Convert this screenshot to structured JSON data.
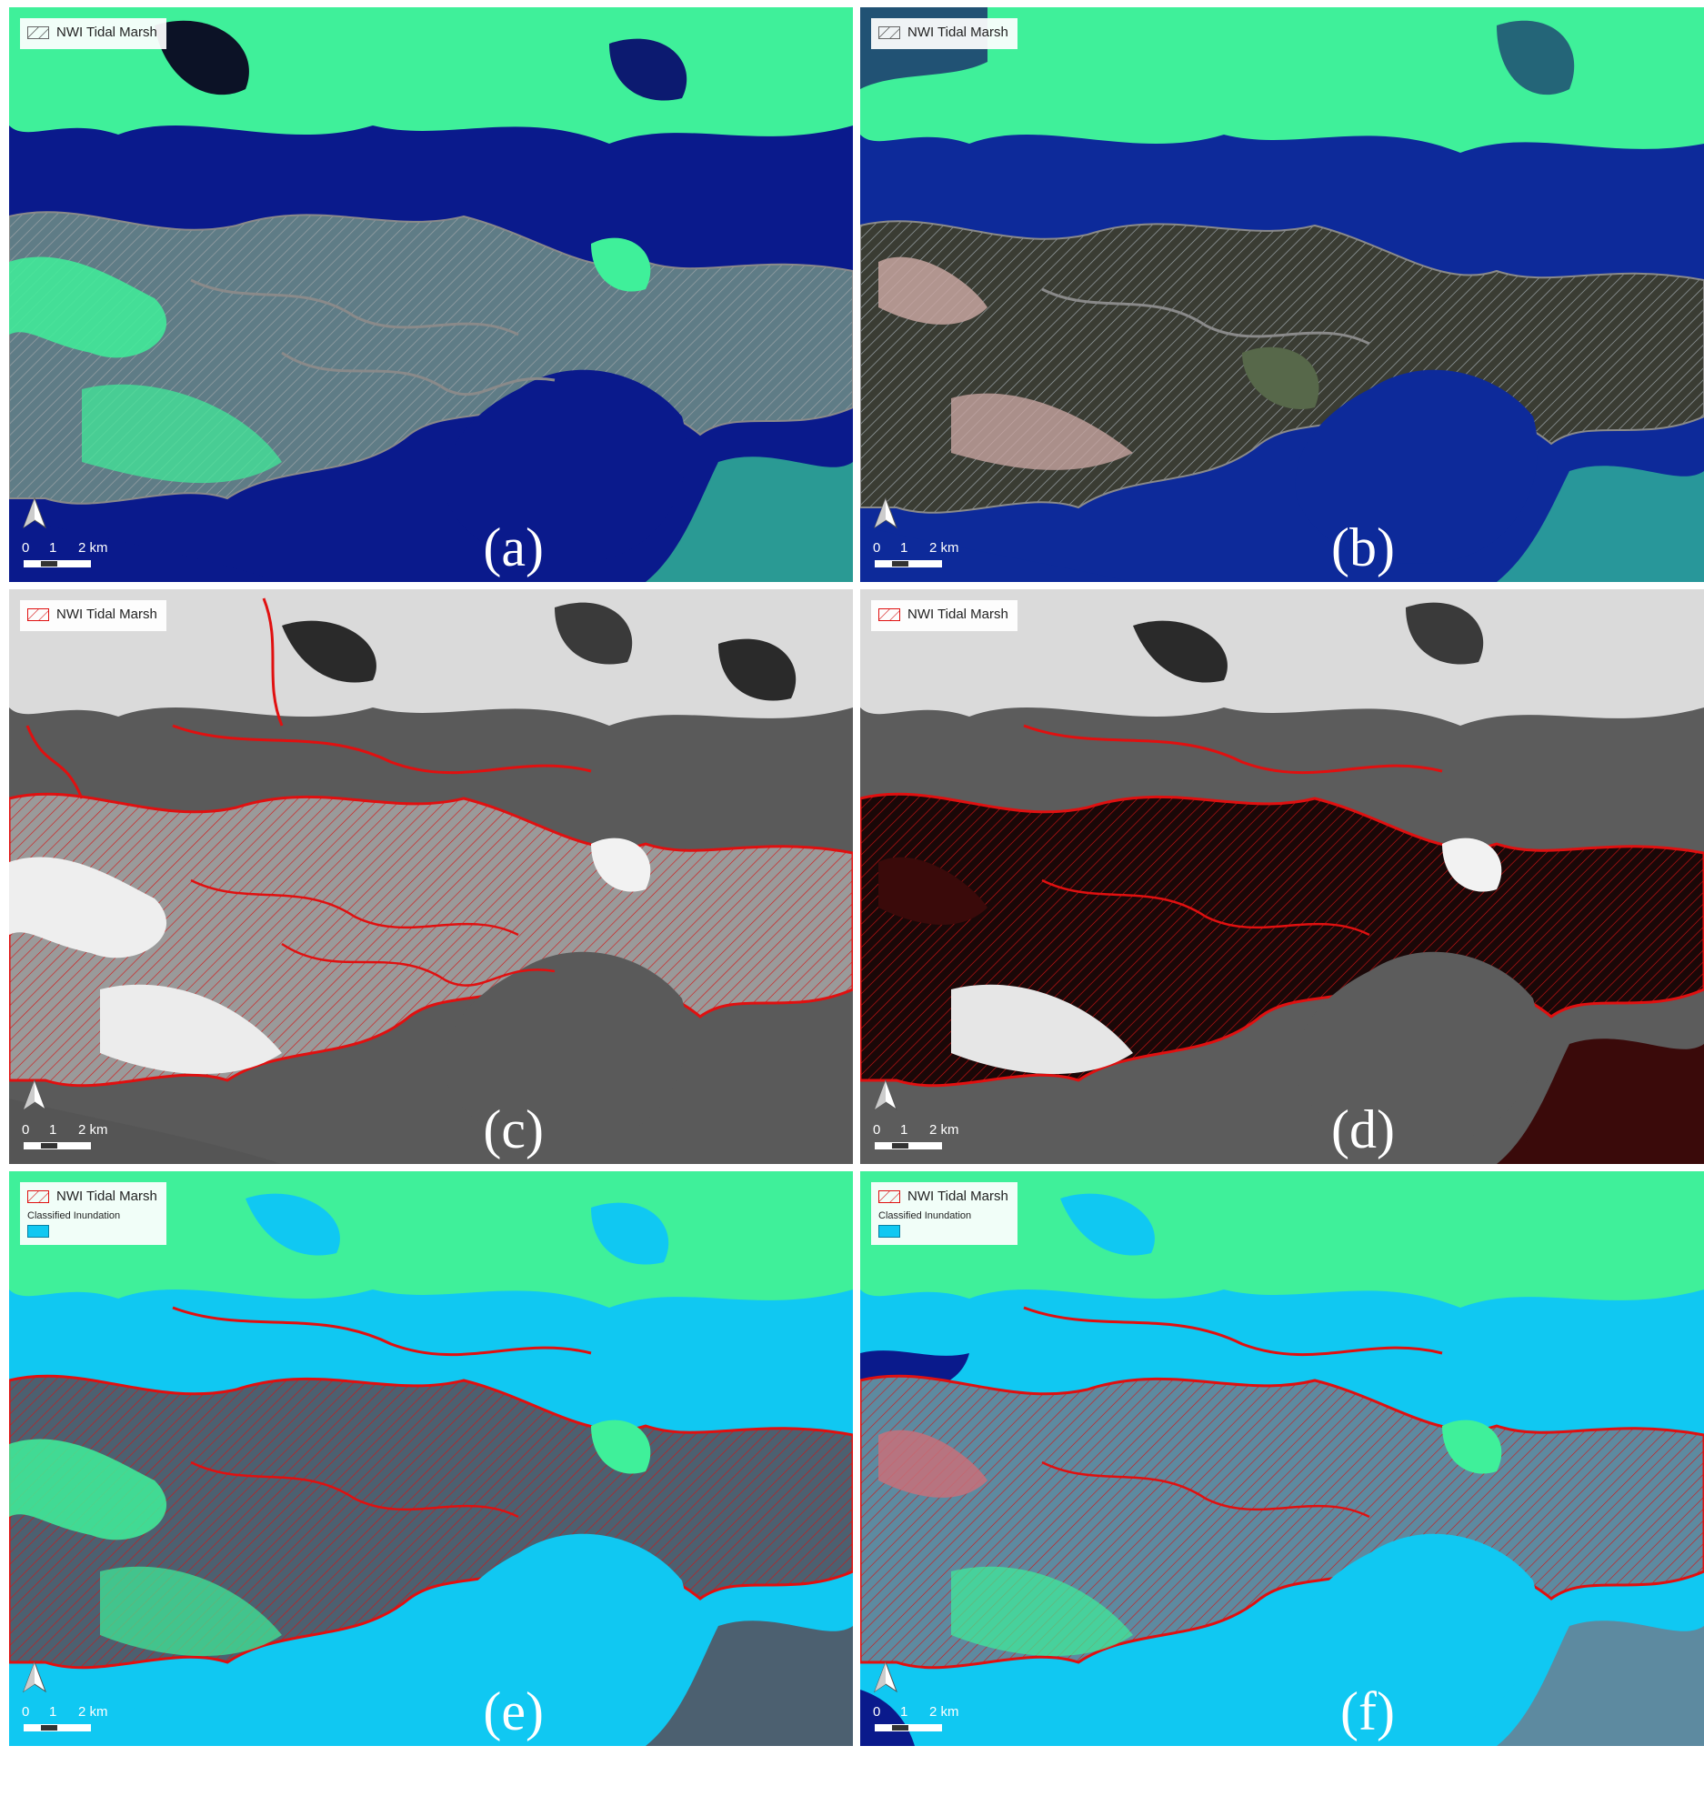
{
  "legend": {
    "tidal_marsh_label": "NWI Tidal Marsh",
    "inundation_label": "Classified Inundation"
  },
  "scale_bar": {
    "tick_0": "0",
    "tick_1": "1",
    "tick_2": "2 km"
  },
  "panels": [
    {
      "label": "(a)",
      "basemap": "false-color RGB",
      "overlay": "gray hatched",
      "inundation": false
    },
    {
      "label": "(b)",
      "basemap": "false-color RGB",
      "overlay": "gray hatched",
      "inundation": false
    },
    {
      "label": "(c)",
      "basemap": "grayscale",
      "overlay": "red hatched",
      "inundation": false
    },
    {
      "label": "(d)",
      "basemap": "grayscale",
      "overlay": "red hatched",
      "inundation": false
    },
    {
      "label": "(e)",
      "basemap": "false-color RGB",
      "overlay": "red hatched",
      "inundation": true
    },
    {
      "label": "(f)",
      "basemap": "false-color RGB",
      "overlay": "red hatched",
      "inundation": true
    }
  ],
  "colors": {
    "vegetation": "#3ff09a",
    "water": "#0a1a8c",
    "marsh_gray": "#5f7c86",
    "outline_gray": "#8a8a8a",
    "outline_red": "#e01010",
    "inundation": "#10c8f2"
  },
  "icons": {
    "north_arrow": "north-arrow-icon"
  }
}
